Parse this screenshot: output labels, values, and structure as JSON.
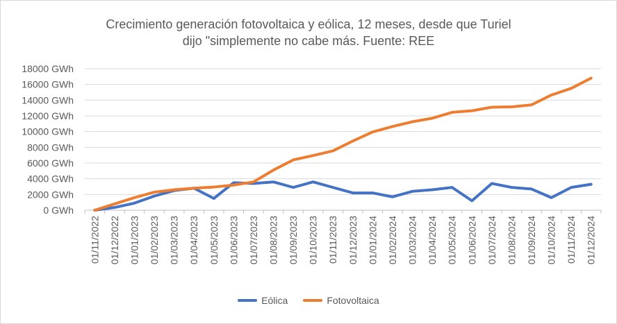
{
  "chart_data": {
    "type": "line",
    "title_lines": [
      "Crecimiento generación fotovoltaica y eólica, 12 meses, desde que Turiel",
      "dijo \"simplemente no cabe más. Fuente: REE"
    ],
    "categories": [
      "01/11/2022",
      "01/12/2022",
      "01/01/2023",
      "01/02/2023",
      "01/03/2023",
      "01/04/2023",
      "01/05/2023",
      "01/06/2023",
      "01/07/2023",
      "01/08/2023",
      "01/09/2023",
      "01/10/2023",
      "01/11/2023",
      "01/12/2023",
      "01/01/2024",
      "01/02/2024",
      "01/03/2024",
      "01/04/2024",
      "01/05/2024",
      "01/06/2024",
      "01/07/2024",
      "01/08/2024",
      "01/09/2024",
      "01/10/2024",
      "01/11/2024",
      "01/12/2024"
    ],
    "y_ticks": [
      0,
      2000,
      4000,
      6000,
      8000,
      10000,
      12000,
      14000,
      16000,
      18000
    ],
    "y_unit": "GWh",
    "ylim": [
      0,
      18000
    ],
    "grid": true,
    "legend_position": "bottom",
    "series": [
      {
        "name": "Eólica",
        "color": "#4472c4",
        "values": [
          0,
          350,
          900,
          1800,
          2500,
          2800,
          1500,
          3500,
          3400,
          3600,
          2900,
          3600,
          2900,
          2200,
          2200,
          1700,
          2400,
          2600,
          2900,
          1200,
          3400,
          2900,
          2700,
          1600,
          2900,
          3300
        ]
      },
      {
        "name": "Fotovoltaica",
        "color": "#ed7d31",
        "values": [
          0,
          800,
          1600,
          2300,
          2600,
          2800,
          2950,
          3200,
          3600,
          5100,
          6400,
          6950,
          7550,
          8800,
          9950,
          10650,
          11250,
          11700,
          12450,
          12650,
          13100,
          13150,
          13400,
          14650,
          15500,
          16800
        ]
      }
    ]
  }
}
